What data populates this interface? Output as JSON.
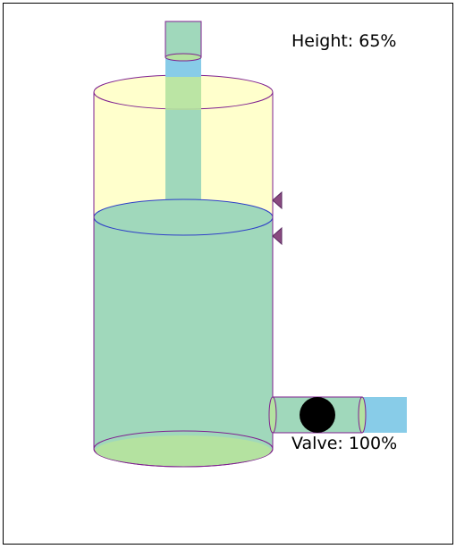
{
  "tank": {
    "height_label": "Height: 65%",
    "level_fraction": 0.65,
    "valve_label": "Valve: 100%",
    "valve_fraction": 1.0
  },
  "colors": {
    "liquid": "#a0d8bb",
    "empty_tank": "#ffffcc",
    "inflow": "#88cce8",
    "outline": "#7f2090",
    "surface_outline": "#2f3fc8",
    "bottom_cap": "#b4e2a0",
    "indicator": "#8a4a80",
    "valve_body": "#000000"
  }
}
